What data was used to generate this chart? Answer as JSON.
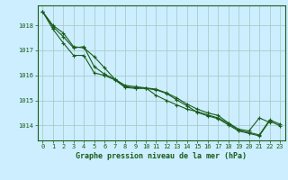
{
  "bg_color": "#cceeff",
  "grid_color": "#aacccc",
  "line_color": "#1a5c1a",
  "title": "Graphe pression niveau de la mer (hPa)",
  "title_color": "#1a5c1a",
  "ylim": [
    1013.4,
    1018.8
  ],
  "yticks": [
    1014,
    1015,
    1016,
    1017,
    1018
  ],
  "xlim": [
    -0.5,
    23.5
  ],
  "xticks": [
    0,
    1,
    2,
    3,
    4,
    5,
    6,
    7,
    8,
    9,
    10,
    11,
    12,
    13,
    14,
    15,
    16,
    17,
    18,
    19,
    20,
    21,
    22,
    23
  ],
  "series1_x": [
    0,
    1,
    2,
    3,
    4,
    5,
    6,
    7,
    8,
    9,
    10,
    11,
    12,
    13,
    14,
    15,
    16,
    17,
    18,
    19,
    20,
    21,
    22
  ],
  "series1_y": [
    1018.55,
    1018.0,
    1017.7,
    1017.15,
    1017.1,
    1016.75,
    1016.3,
    1015.85,
    1015.6,
    1015.55,
    1015.5,
    1015.45,
    1015.3,
    1015.1,
    1014.85,
    1014.65,
    1014.5,
    1014.4,
    1014.1,
    1013.85,
    1013.78,
    1014.3,
    1014.12
  ],
  "series2_x": [
    0,
    1,
    2,
    3,
    4,
    5,
    6,
    7,
    8,
    9,
    10,
    11,
    12,
    13,
    14,
    15,
    16,
    17,
    18,
    19,
    20,
    21,
    22,
    23
  ],
  "series2_y": [
    1018.55,
    1017.95,
    1017.55,
    1017.1,
    1017.15,
    1016.35,
    1016.05,
    1015.85,
    1015.55,
    1015.5,
    1015.5,
    1015.2,
    1015.0,
    1014.82,
    1014.65,
    1014.55,
    1014.42,
    1014.3,
    1014.08,
    1013.8,
    1013.72,
    1013.62,
    1014.22,
    1014.05
  ],
  "series3_x": [
    0,
    1,
    2,
    3,
    4,
    5,
    6,
    7,
    8,
    9,
    10,
    11,
    12,
    13,
    14,
    15,
    16,
    17,
    18,
    19,
    20,
    21,
    22,
    23
  ],
  "series3_y": [
    1018.55,
    1017.85,
    1017.3,
    1016.8,
    1016.8,
    1016.1,
    1016.0,
    1015.82,
    1015.52,
    1015.48,
    1015.48,
    1015.42,
    1015.28,
    1015.02,
    1014.78,
    1014.52,
    1014.38,
    1014.27,
    1014.02,
    1013.78,
    1013.68,
    1013.58,
    1014.18,
    1013.98
  ]
}
